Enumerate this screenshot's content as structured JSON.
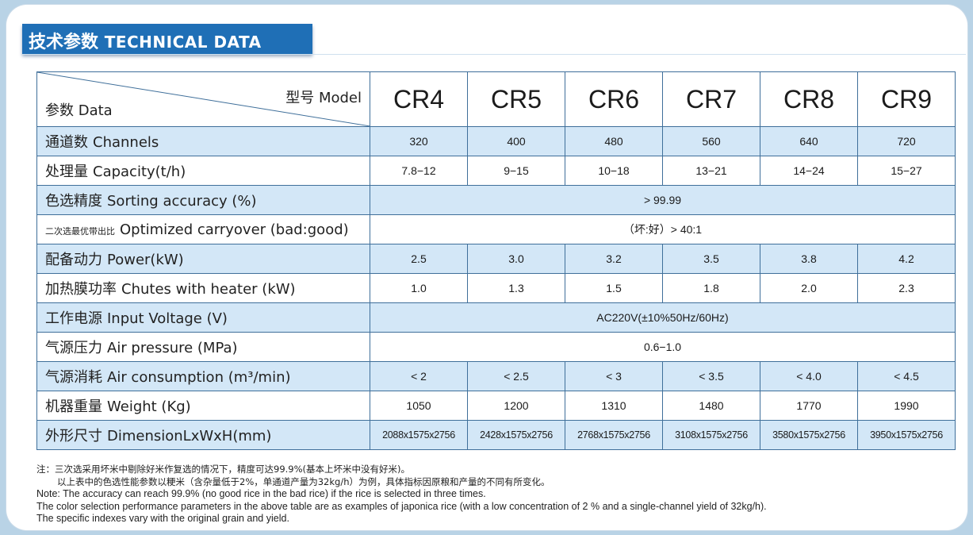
{
  "header": {
    "title_zh": "技术参数",
    "title_en": "TECHNICAL DATA"
  },
  "table": {
    "corner_model": "型号 Model",
    "corner_data": "参数 Data",
    "models": [
      "CR4",
      "CR5",
      "CR6",
      "CR7",
      "CR8",
      "CR9"
    ],
    "rows": [
      {
        "zh": "通道数",
        "en": "Channels",
        "values": [
          "320",
          "400",
          "480",
          "560",
          "640",
          "720"
        ]
      },
      {
        "zh": "处理量",
        "en": "Capacity(t/h)",
        "values": [
          "7.8−12",
          "9−15",
          "10−18",
          "13−21",
          "14−24",
          "15−27"
        ]
      },
      {
        "zh": "色选精度",
        "en": "Sorting accuracy (%)",
        "merged": ">   99.99"
      },
      {
        "zh": "二次选最优带出比",
        "en": "Optimized carryover (bad:good)",
        "merged": "（坏:好）> 40:1"
      },
      {
        "zh": "配备动力",
        "en": "Power(kW)",
        "values": [
          "2.5",
          "3.0",
          "3.2",
          "3.5",
          "3.8",
          "4.2"
        ]
      },
      {
        "zh": "加热膜功率",
        "en": "Chutes with heater  (kW)",
        "values": [
          "1.0",
          "1.3",
          "1.5",
          "1.8",
          "2.0",
          "2.3"
        ]
      },
      {
        "zh": "工作电源",
        "en": "Input Voltage (V)",
        "merged": "AC220V(±10%50Hz/60Hz)"
      },
      {
        "zh": "气源压力",
        "en": "Air pressure (MPa)",
        "merged": "0.6−1.0"
      },
      {
        "zh": "气源消耗",
        "en": "Air consumption (m³/min)",
        "values": [
          "< 2",
          "< 2.5",
          "< 3",
          "< 3.5",
          "< 4.0",
          "< 4.5"
        ]
      },
      {
        "zh": "机器重量",
        "en": "Weight  (Kg)",
        "values": [
          "1050",
          "1200",
          "1310",
          "1480",
          "1770",
          "1990"
        ]
      },
      {
        "zh": "外形尺寸",
        "en": "DimensionLxWxH(mm)",
        "values": [
          "2088x1575x2756",
          "2428x1575x2756",
          "2768x1575x2756",
          "3108x1575x2756",
          "3580x1575x2756",
          "3950x1575x2756"
        ]
      }
    ]
  },
  "notes": {
    "zh_line1": "注：三次选采用坏米中剔除好米作复选的情况下，精度可达99.9%(基本上坏米中没有好米)。",
    "zh_line2": "以上表中的色选性能参数以粳米（含杂量低于2%，单通道产量为32kg/h）为例，具体指标因原粮和产量的不同有所变化。",
    "en_line1": "Note: The accuracy can reach 99.9% (no good rice in the bad rice) if the rice is selected in three times.",
    "en_line2": "The color selection performance parameters in the above table are as examples of japonica rice (with a low concentration of 2 % and a single-channel yield of 32kg/h).",
    "en_line3": "The specific indexes vary with the original grain and yield."
  }
}
